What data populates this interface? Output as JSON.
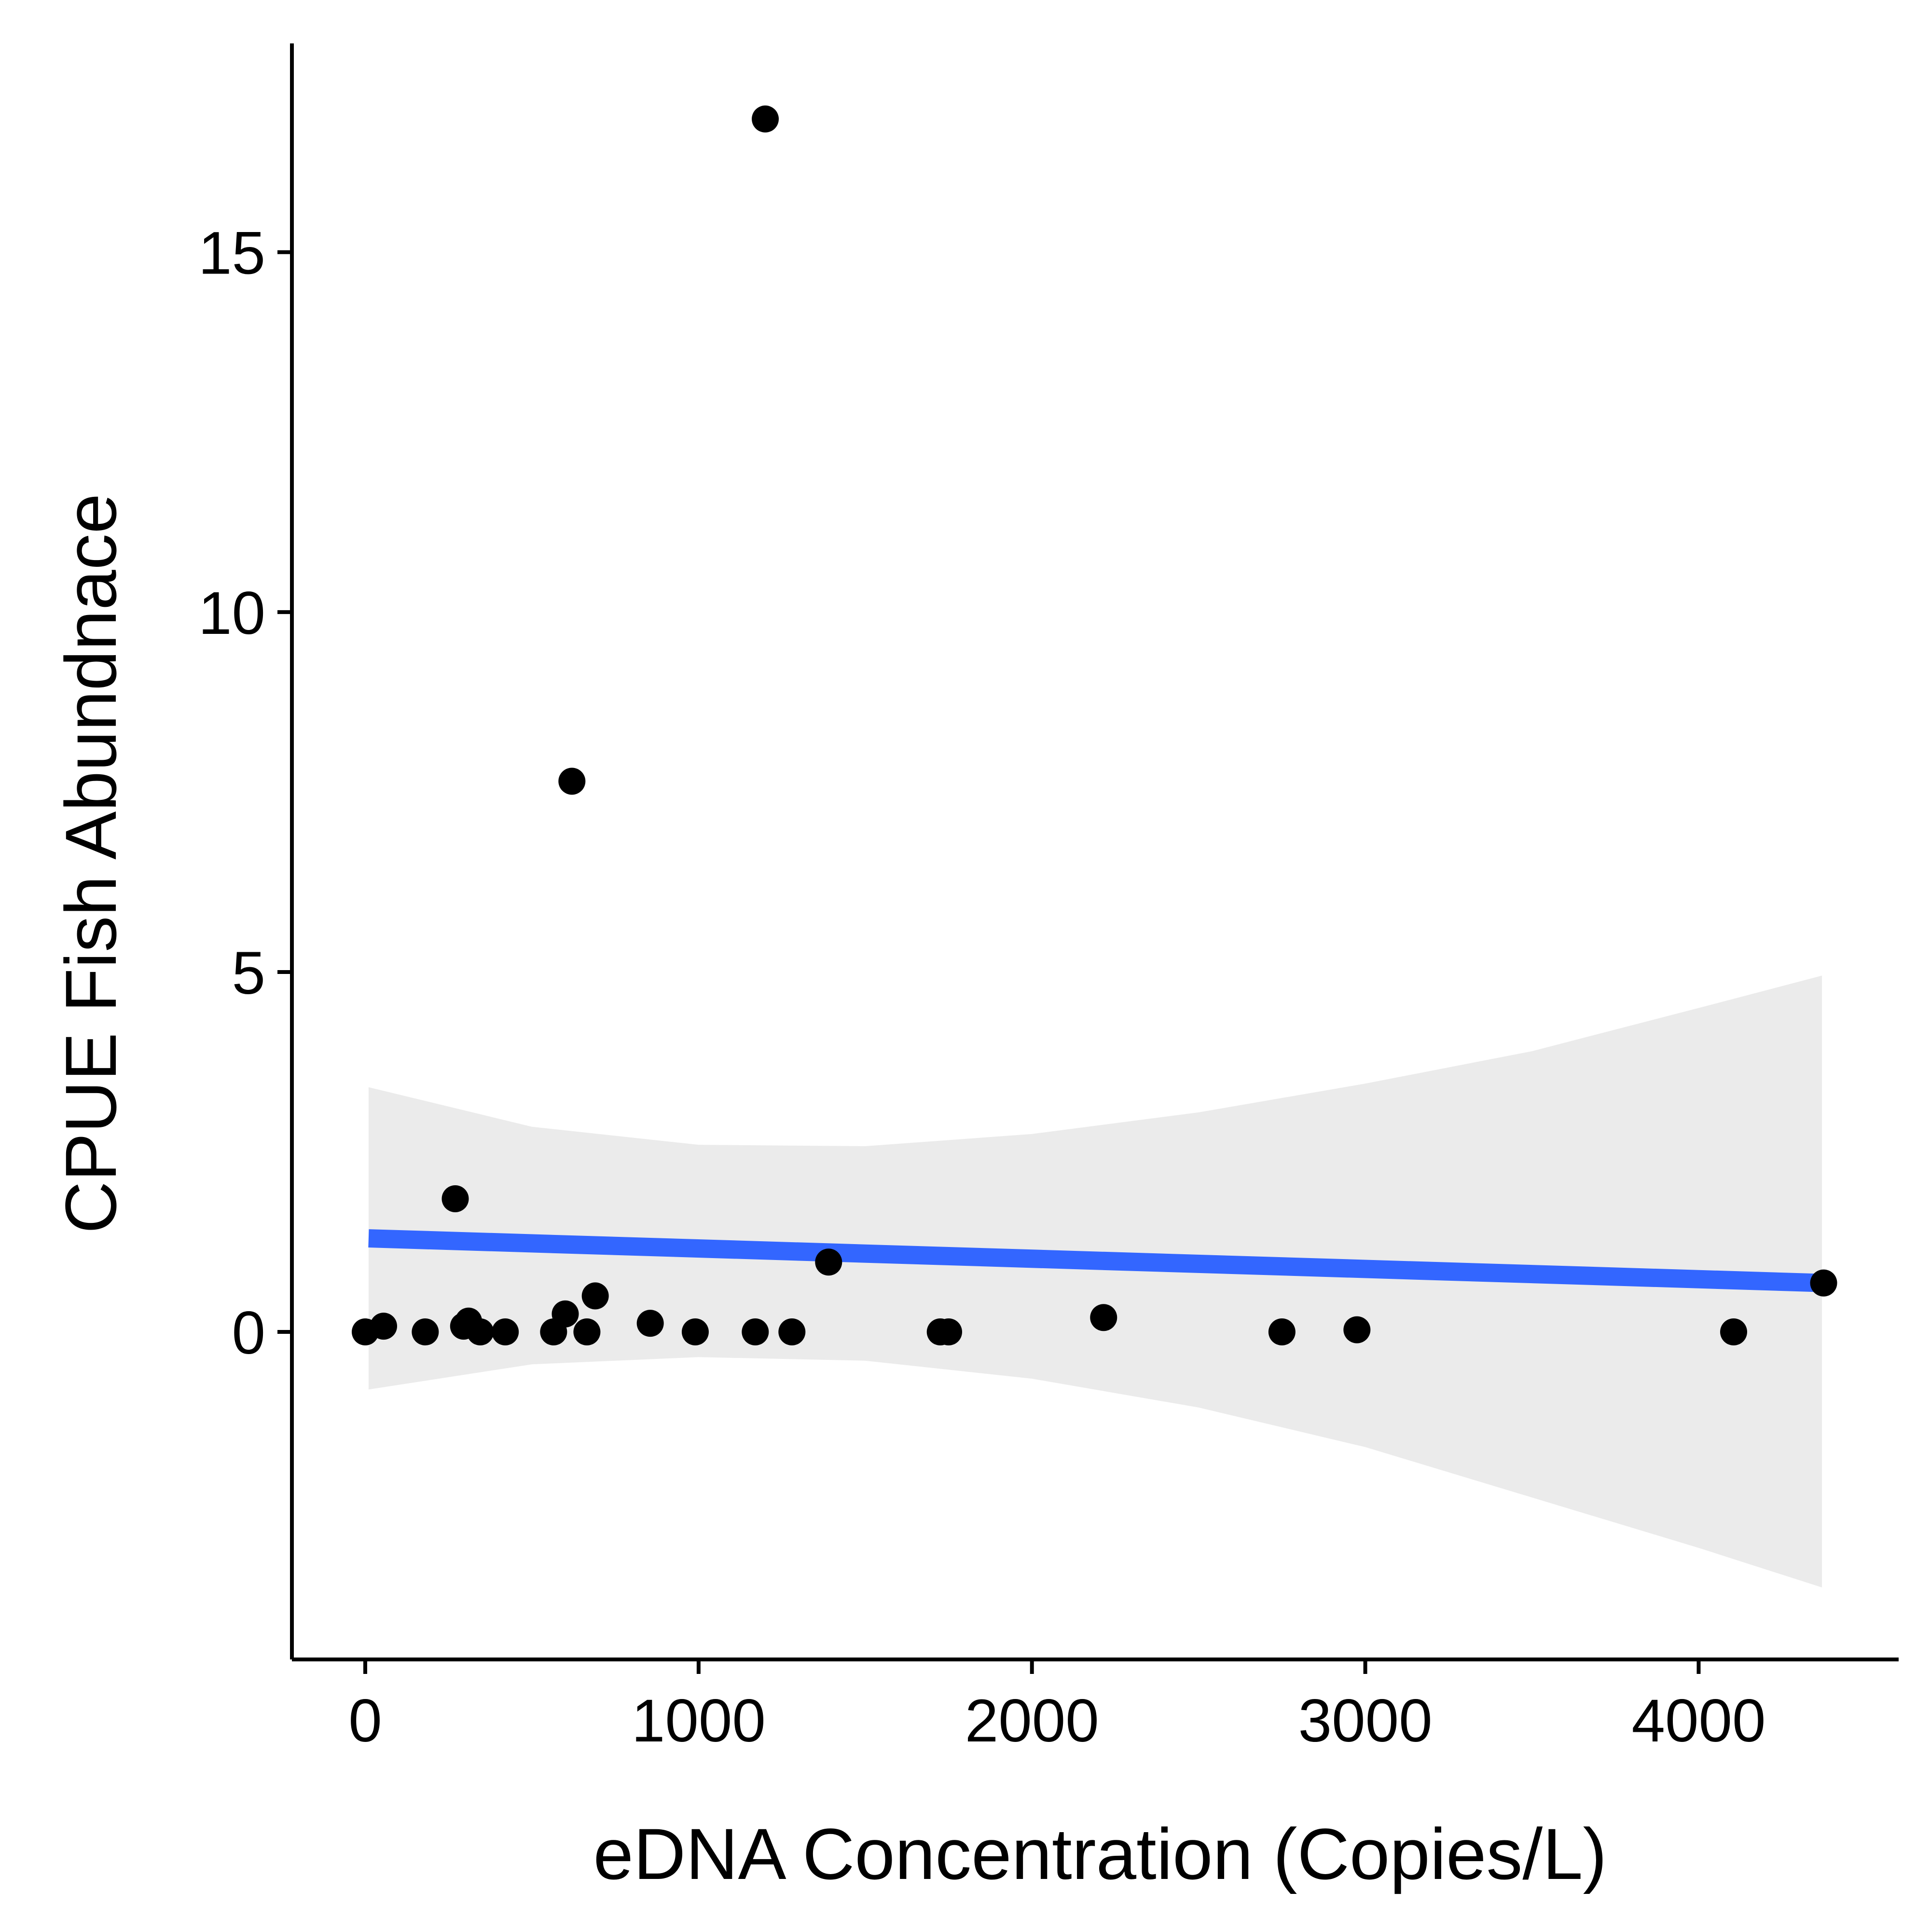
{
  "chart_data": {
    "type": "scatter",
    "title": "",
    "xlabel": "eDNA Concentration (Copies/L)",
    "ylabel": "CPUE Fish Abundnace",
    "xlim": [
      -220,
      4600
    ],
    "ylim": [
      -4.55,
      17.9
    ],
    "x_ticks": [
      {
        "value": 0,
        "label": "0"
      },
      {
        "value": 1000,
        "label": "1000"
      },
      {
        "value": 2000,
        "label": "2000"
      },
      {
        "value": 3000,
        "label": "3000"
      },
      {
        "value": 4000,
        "label": "4000"
      }
    ],
    "y_ticks": [
      {
        "value": 0,
        "label": "0"
      },
      {
        "value": 5,
        "label": "5"
      },
      {
        "value": 10,
        "label": "10"
      },
      {
        "value": 15,
        "label": "15"
      }
    ],
    "grid": false,
    "legend": "none",
    "point_color": "#000000",
    "points": [
      {
        "x": 0,
        "y": 0.0
      },
      {
        "x": 55,
        "y": 0.08
      },
      {
        "x": 180,
        "y": 0.0
      },
      {
        "x": 270,
        "y": 1.85
      },
      {
        "x": 295,
        "y": 0.08
      },
      {
        "x": 310,
        "y": 0.15
      },
      {
        "x": 345,
        "y": 0.0
      },
      {
        "x": 420,
        "y": 0.0
      },
      {
        "x": 565,
        "y": 0.0
      },
      {
        "x": 600,
        "y": 0.25
      },
      {
        "x": 620,
        "y": 7.65
      },
      {
        "x": 665,
        "y": 0.0
      },
      {
        "x": 690,
        "y": 0.5
      },
      {
        "x": 855,
        "y": 0.12
      },
      {
        "x": 990,
        "y": 0.0
      },
      {
        "x": 1170,
        "y": 0.0
      },
      {
        "x": 1200,
        "y": 16.85
      },
      {
        "x": 1280,
        "y": 0.0
      },
      {
        "x": 1390,
        "y": 0.97
      },
      {
        "x": 1725,
        "y": 0.0
      },
      {
        "x": 1750,
        "y": 0.0
      },
      {
        "x": 2215,
        "y": 0.2
      },
      {
        "x": 2750,
        "y": 0.0
      },
      {
        "x": 2975,
        "y": 0.03
      },
      {
        "x": 4105,
        "y": 0.0
      },
      {
        "x": 4375,
        "y": 0.68
      }
    ],
    "trend_line": {
      "method": "linear fit",
      "color": "#3366ff",
      "x": [
        10,
        4370
      ],
      "y": [
        1.3,
        0.68
      ]
    },
    "confidence_band": {
      "color": "#ebebeb",
      "x": [
        10,
        500,
        1000,
        1500,
        2000,
        2500,
        3000,
        3500,
        4000,
        4370
      ],
      "upper": [
        3.4,
        2.85,
        2.6,
        2.58,
        2.75,
        3.05,
        3.45,
        3.9,
        4.5,
        4.95
      ],
      "lower": [
        -0.8,
        -0.45,
        -0.35,
        -0.4,
        -0.65,
        -1.05,
        -1.6,
        -2.3,
        -3.0,
        -3.55
      ]
    }
  }
}
